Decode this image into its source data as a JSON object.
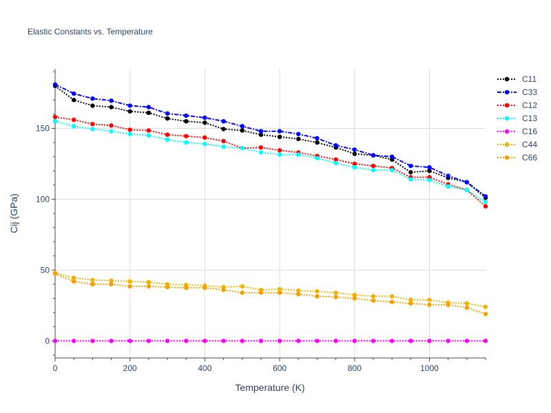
{
  "chart_data": {
    "type": "line",
    "title": "Elastic Constants vs. Temperature",
    "xlabel": "Temperature (K)",
    "ylabel": "Cij (GPa)",
    "xlim": [
      0,
      1150
    ],
    "ylim": [
      -12,
      192
    ],
    "xticks": [
      0,
      200,
      400,
      600,
      800,
      1000
    ],
    "yticks": [
      0,
      50,
      100,
      150
    ],
    "grid": true,
    "legend_position": "top-right",
    "x": [
      0,
      50,
      100,
      150,
      200,
      250,
      300,
      350,
      400,
      450,
      500,
      550,
      600,
      650,
      700,
      750,
      800,
      850,
      900,
      950,
      1000,
      1050,
      1100,
      1150
    ],
    "series": [
      {
        "name": "C11",
        "color": "#000000",
        "dash": "dot",
        "values": [
          180,
          170,
          166,
          165,
          162,
          161,
          157,
          155,
          154,
          149.5,
          148.5,
          145.5,
          144,
          142.5,
          140,
          136.5,
          132,
          131,
          128,
          119,
          120,
          115,
          112,
          101
        ]
      },
      {
        "name": "C33",
        "color": "#0000ff",
        "dash": "dashdot",
        "values": [
          181,
          174.5,
          171,
          169.5,
          166,
          165,
          160.5,
          159,
          157.5,
          155,
          151.5,
          148,
          148,
          146,
          143,
          138,
          135,
          131,
          130,
          123.5,
          122.5,
          116.5,
          112,
          102
        ]
      },
      {
        "name": "C12",
        "color": "#ff0000",
        "dash": "dot",
        "values": [
          158,
          156,
          153,
          152,
          149,
          148.5,
          145.5,
          144.5,
          143.5,
          141,
          136,
          136.5,
          134.5,
          133,
          130.5,
          128,
          125,
          123.5,
          122,
          115.5,
          115.5,
          110.5,
          106.5,
          95
        ]
      },
      {
        "name": "C13",
        "color": "#00ffff",
        "dash": "dot",
        "values": [
          155,
          151.5,
          149.5,
          148,
          146,
          145,
          142,
          140,
          139,
          137,
          136,
          133,
          131.5,
          131.5,
          129,
          125.5,
          122.5,
          120.5,
          120.5,
          114,
          113.5,
          109,
          106.5,
          98
        ]
      },
      {
        "name": "C16",
        "color": "#ff00ff",
        "dash": "dot",
        "values": [
          0,
          0,
          0,
          0,
          0,
          0,
          0,
          0,
          0,
          0,
          0,
          0,
          0,
          0,
          0,
          0,
          0,
          0,
          0,
          0,
          0,
          0,
          0,
          0
        ]
      },
      {
        "name": "C44",
        "color": "#f0b400",
        "dash": "dot",
        "values": [
          48,
          44.5,
          43,
          42.5,
          42,
          41.5,
          40,
          39.5,
          39,
          38,
          38.5,
          36,
          36.5,
          35.5,
          35,
          34,
          32.5,
          31.5,
          31.5,
          29,
          29,
          27,
          26.5,
          24
        ]
      },
      {
        "name": "C66",
        "color": "#f5a000",
        "dash": "dot",
        "values": [
          47.5,
          42,
          40,
          40,
          38.5,
          38.5,
          38,
          37.5,
          37.5,
          36,
          34,
          34,
          34,
          33,
          31.5,
          31,
          30,
          28.5,
          27.5,
          26.5,
          25.5,
          25.5,
          23.5,
          19
        ]
      }
    ]
  }
}
